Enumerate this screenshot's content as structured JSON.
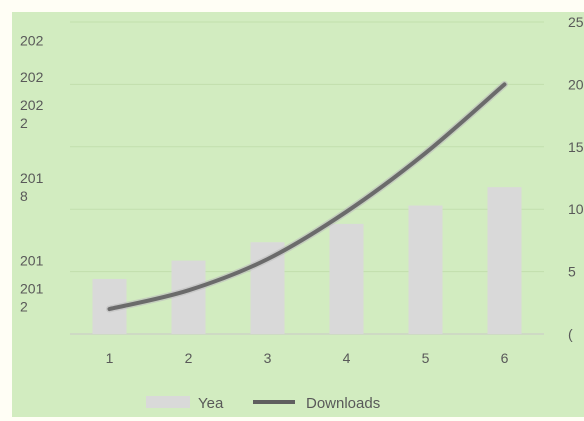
{
  "chart_data": {
    "type": "bar+line",
    "categories": [
      "1",
      "2",
      "3",
      "4",
      "5",
      "6"
    ],
    "series": [
      {
        "name": "Yea",
        "type": "bar",
        "axis": "left",
        "values": [
          2013,
          2014,
          2015,
          2016,
          2017,
          2018
        ]
      },
      {
        "name": "Downloads",
        "type": "line",
        "axis": "right",
        "values": [
          2,
          3.5,
          6,
          9.8,
          14.5,
          20
        ]
      }
    ],
    "y_left": {
      "tick_labels": [
        "201\n2",
        "201",
        "201\n8",
        "202\n2",
        "202",
        "202"
      ],
      "tick_values": [
        2012,
        2014,
        2018,
        2022,
        2024,
        2026
      ],
      "range": [
        2010,
        2027
      ]
    },
    "y_right": {
      "tick_labels": [
        "(",
        "5",
        "10",
        "15",
        "20",
        "25"
      ],
      "range": [
        0,
        25
      ]
    },
    "grid": true,
    "legend_position": "bottom",
    "colors": {
      "bar": "#d9d9d9",
      "line": "#6b6b6b",
      "background": "#d2ecc0"
    }
  }
}
